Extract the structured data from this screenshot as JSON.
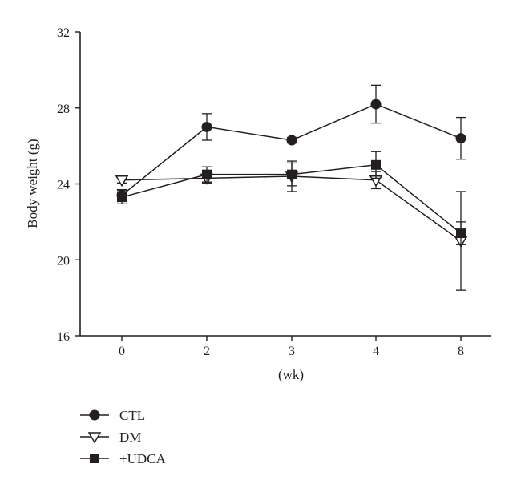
{
  "chart_data": {
    "type": "line",
    "xlabel": "(wk)",
    "ylabel": "Body weight (g)",
    "categories": [
      "0",
      "2",
      "3",
      "4",
      "8"
    ],
    "ylim": [
      16,
      32
    ],
    "yticks": [
      16,
      20,
      24,
      28,
      32
    ],
    "grid": false,
    "legend_position": "bottom-left",
    "series": [
      {
        "name": "CTL",
        "marker": "circle-filled",
        "color": "#231f20",
        "values": [
          23.4,
          27.0,
          26.3,
          28.2,
          26.4
        ],
        "errors": [
          0.3,
          0.7,
          0.15,
          1.0,
          1.1
        ]
      },
      {
        "name": "DM",
        "marker": "triangle-down-open",
        "color": "#231f20",
        "values": [
          24.2,
          24.3,
          24.4,
          24.2,
          21.0
        ],
        "errors": [
          0.15,
          0.25,
          0.8,
          0.45,
          2.6
        ]
      },
      {
        "name": "+UDCA",
        "marker": "square-filled",
        "color": "#231f20",
        "values": [
          23.3,
          24.5,
          24.5,
          25.0,
          21.4
        ],
        "errors": [
          0.35,
          0.4,
          0.6,
          0.7,
          0.6
        ]
      }
    ]
  }
}
